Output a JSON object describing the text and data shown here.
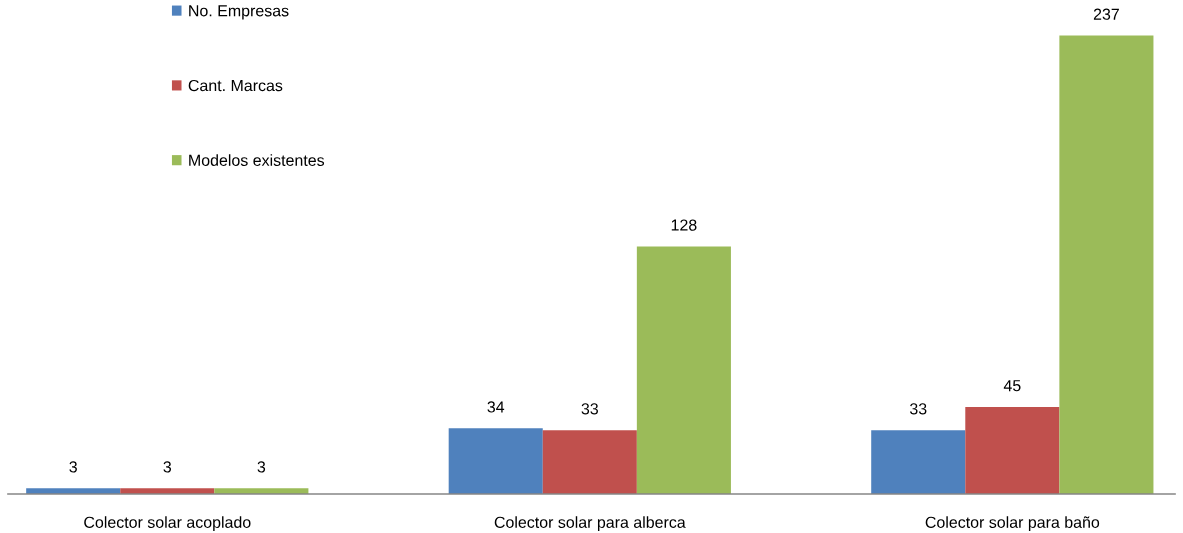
{
  "chart_data": {
    "type": "bar",
    "categories": [
      "Colector solar acoplado",
      "Colector solar para alberca",
      "Colector solar para baño"
    ],
    "series": [
      {
        "name": "No. Empresas",
        "color": "#4f81bd",
        "values": [
          3,
          34,
          33
        ]
      },
      {
        "name": "Cant. Marcas",
        "color": "#c0504d",
        "values": [
          3,
          33,
          45
        ]
      },
      {
        "name": "Modelos existentes",
        "color": "#9bbb59",
        "values": [
          3,
          128,
          237
        ]
      }
    ],
    "data_labels": true,
    "legend": "top left",
    "grid": false,
    "tick_labels": "x"
  }
}
